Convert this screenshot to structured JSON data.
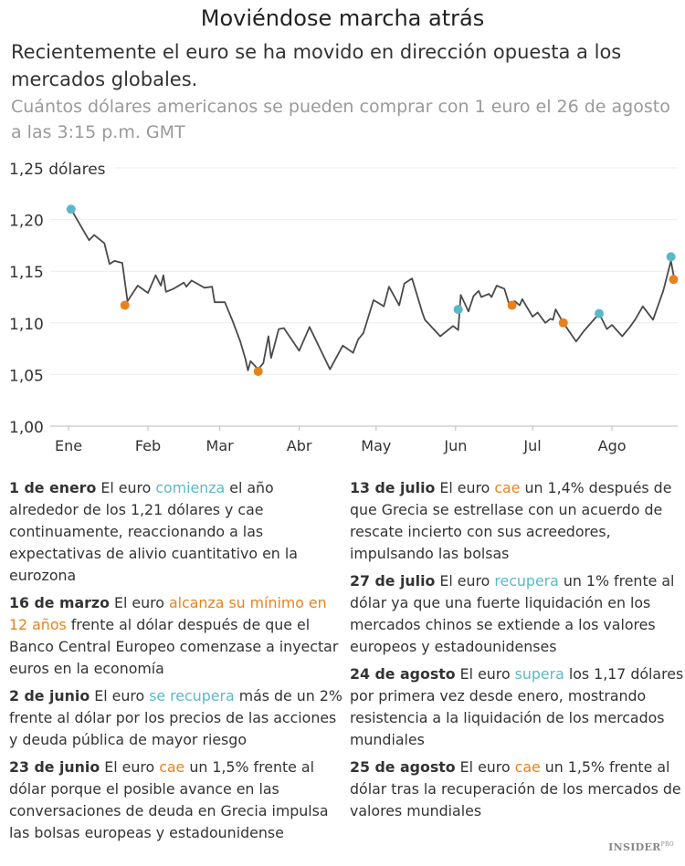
{
  "title": "Moviéndose marcha atrás",
  "subtitle": "Recientemente el euro se ha movido en dirección opuesta a los mercados globales.",
  "description": "Cuántos dólares americanos se pueden comprar con 1 euro el 26 de agosto a las 3:15 p.m. GMT",
  "colors": {
    "rise": "#5bb8c8",
    "fall": "#e8821e",
    "line": "#4a4a4a",
    "grid": "#ececec"
  },
  "chart_data": {
    "type": "line",
    "ylabel": "",
    "ylim": [
      1.0,
      1.25
    ],
    "yticks": [
      {
        "v": 1.25,
        "label": "1,25 dólares"
      },
      {
        "v": 1.2,
        "label": "1,20"
      },
      {
        "v": 1.15,
        "label": "1,15"
      },
      {
        "v": 1.1,
        "label": "1,10"
      },
      {
        "v": 1.05,
        "label": "1,05"
      },
      {
        "v": 1.0,
        "label": "1,00"
      }
    ],
    "xticks": [
      {
        "d": "01-01",
        "label": "Ene"
      },
      {
        "d": "02-01",
        "label": "Feb"
      },
      {
        "d": "03-01",
        "label": "Mar"
      },
      {
        "d": "04-01",
        "label": "Abr"
      },
      {
        "d": "05-01",
        "label": "May"
      },
      {
        "d": "06-01",
        "label": "Jun"
      },
      {
        "d": "07-01",
        "label": "Jul"
      },
      {
        "d": "08-01",
        "label": "Ago"
      }
    ],
    "grid": true,
    "series": [
      {
        "points": [
          [
            "01-02",
            1.21
          ],
          [
            "01-09",
            1.18
          ],
          [
            "01-11",
            1.185
          ],
          [
            "01-15",
            1.177
          ],
          [
            "01-17",
            1.157
          ],
          [
            "01-19",
            1.16
          ],
          [
            "01-22",
            1.158
          ],
          [
            "01-24",
            1.121
          ],
          [
            "01-28",
            1.136
          ],
          [
            "02-01",
            1.129
          ],
          [
            "02-04",
            1.146
          ],
          [
            "02-06",
            1.136
          ],
          [
            "02-07",
            1.146
          ],
          [
            "02-08",
            1.13
          ],
          [
            "02-11",
            1.133
          ],
          [
            "02-15",
            1.139
          ],
          [
            "02-16",
            1.135
          ],
          [
            "02-18",
            1.141
          ],
          [
            "02-23",
            1.134
          ],
          [
            "02-26",
            1.135
          ],
          [
            "02-27",
            1.12
          ],
          [
            "03-03",
            1.12
          ],
          [
            "03-06",
            1.102
          ],
          [
            "03-09",
            1.082
          ],
          [
            "03-11",
            1.065
          ],
          [
            "03-12",
            1.054
          ],
          [
            "03-13",
            1.063
          ],
          [
            "03-16",
            1.055
          ],
          [
            "03-18",
            1.061
          ],
          [
            "03-20",
            1.087
          ],
          [
            "03-21",
            1.066
          ],
          [
            "03-24",
            1.094
          ],
          [
            "03-26",
            1.095
          ],
          [
            "04-01",
            1.073
          ],
          [
            "04-05",
            1.096
          ],
          [
            "04-13",
            1.055
          ],
          [
            "04-18",
            1.078
          ],
          [
            "04-22",
            1.071
          ],
          [
            "04-24",
            1.084
          ],
          [
            "04-26",
            1.09
          ],
          [
            "04-30",
            1.122
          ],
          [
            "05-04",
            1.116
          ],
          [
            "05-06",
            1.135
          ],
          [
            "05-10",
            1.117
          ],
          [
            "05-12",
            1.138
          ],
          [
            "05-15",
            1.143
          ],
          [
            "05-19",
            1.11
          ],
          [
            "05-20",
            1.103
          ],
          [
            "05-26",
            1.087
          ],
          [
            "05-31",
            1.097
          ],
          [
            "06-02",
            1.093
          ],
          [
            "06-03",
            1.127
          ],
          [
            "06-06",
            1.111
          ],
          [
            "06-08",
            1.126
          ],
          [
            "06-10",
            1.131
          ],
          [
            "06-11",
            1.125
          ],
          [
            "06-14",
            1.128
          ],
          [
            "06-15",
            1.125
          ],
          [
            "06-17",
            1.136
          ],
          [
            "06-20",
            1.133
          ],
          [
            "06-22",
            1.117
          ],
          [
            "06-24",
            1.121
          ],
          [
            "06-26",
            1.117
          ],
          [
            "06-27",
            1.123
          ],
          [
            "07-01",
            1.106
          ],
          [
            "07-03",
            1.11
          ],
          [
            "07-06",
            1.1
          ],
          [
            "07-08",
            1.104
          ],
          [
            "07-09",
            1.103
          ],
          [
            "07-10",
            1.113
          ],
          [
            "07-13",
            1.1
          ],
          [
            "07-18",
            1.082
          ],
          [
            "07-21",
            1.092
          ],
          [
            "07-27",
            1.109
          ],
          [
            "07-30",
            1.094
          ],
          [
            "08-01",
            1.098
          ],
          [
            "08-05",
            1.087
          ],
          [
            "08-08",
            1.096
          ],
          [
            "08-10",
            1.103
          ],
          [
            "08-13",
            1.116
          ],
          [
            "08-17",
            1.103
          ],
          [
            "08-21",
            1.131
          ],
          [
            "08-24",
            1.16
          ],
          [
            "08-25",
            1.146
          ]
        ]
      }
    ],
    "markers": [
      {
        "d": "01-02",
        "v": 1.21,
        "kind": "rise"
      },
      {
        "d": "01-23",
        "v": 1.117,
        "kind": "fall"
      },
      {
        "d": "03-16",
        "v": 1.053,
        "kind": "fall"
      },
      {
        "d": "06-02",
        "v": 1.113,
        "kind": "rise"
      },
      {
        "d": "06-23",
        "v": 1.117,
        "kind": "fall"
      },
      {
        "d": "07-13",
        "v": 1.1,
        "kind": "fall"
      },
      {
        "d": "07-27",
        "v": 1.109,
        "kind": "rise"
      },
      {
        "d": "08-24",
        "v": 1.164,
        "kind": "rise"
      },
      {
        "d": "08-25",
        "v": 1.142,
        "kind": "fall"
      }
    ]
  },
  "annotations_left": [
    {
      "date": "1 de enero",
      "pre": "El euro",
      "hl": "comienza",
      "kind": "rise",
      "post": "el año alrededor de los 1,21 dólares y cae continuamente, reaccionando a las expectativas de alivio cuantitativo en la eurozona"
    },
    {
      "date": "16 de marzo",
      "pre": "El euro",
      "hl": "alcanza su mínimo en 12 años",
      "kind": "fall",
      "post": "frente al dólar después de que el Banco Central Europeo comenzase a inyectar euros en la economía"
    },
    {
      "date": "2 de junio",
      "pre": "El euro",
      "hl": "se recupera",
      "kind": "rise",
      "post": "más de un 2% frente al dólar por los precios de las acciones y deuda pública de mayor riesgo"
    },
    {
      "date": "23 de junio",
      "pre": "El euro",
      "hl": "cae",
      "kind": "fall",
      "post": "un 1,5% frente al dólar porque el posible avance en las conversaciones de deuda en Grecia impulsa las bolsas europeas y estadounidense"
    }
  ],
  "annotations_right": [
    {
      "date": "13 de julio",
      "pre": "El euro",
      "hl": "cae",
      "kind": "fall",
      "post": "un 1,4% después de que Grecia se estrellase con un acuerdo de rescate incierto con sus acreedores, impulsando las bolsas"
    },
    {
      "date": "27 de julio",
      "pre": "El euro",
      "hl": "recupera",
      "kind": "rise",
      "post": "un 1% frente al dólar ya que una fuerte liquidación en los mercados chinos se extiende a los valores europeos y estadounidenses"
    },
    {
      "date": "24 de agosto",
      "pre": "El euro",
      "hl": "supera",
      "kind": "rise",
      "post": "los 1,17 dólares por primera vez desde enero, mostrando resistencia a la liquidación de los mercados mundiales"
    },
    {
      "date": "25 de agosto",
      "pre": "El euro",
      "hl": "cae",
      "kind": "fall",
      "post": "un 1,5% frente al dólar tras la recuperación de los mercados de valores mundiales"
    }
  ],
  "logo": {
    "main": "INSIDER",
    "sub": "PRO"
  }
}
